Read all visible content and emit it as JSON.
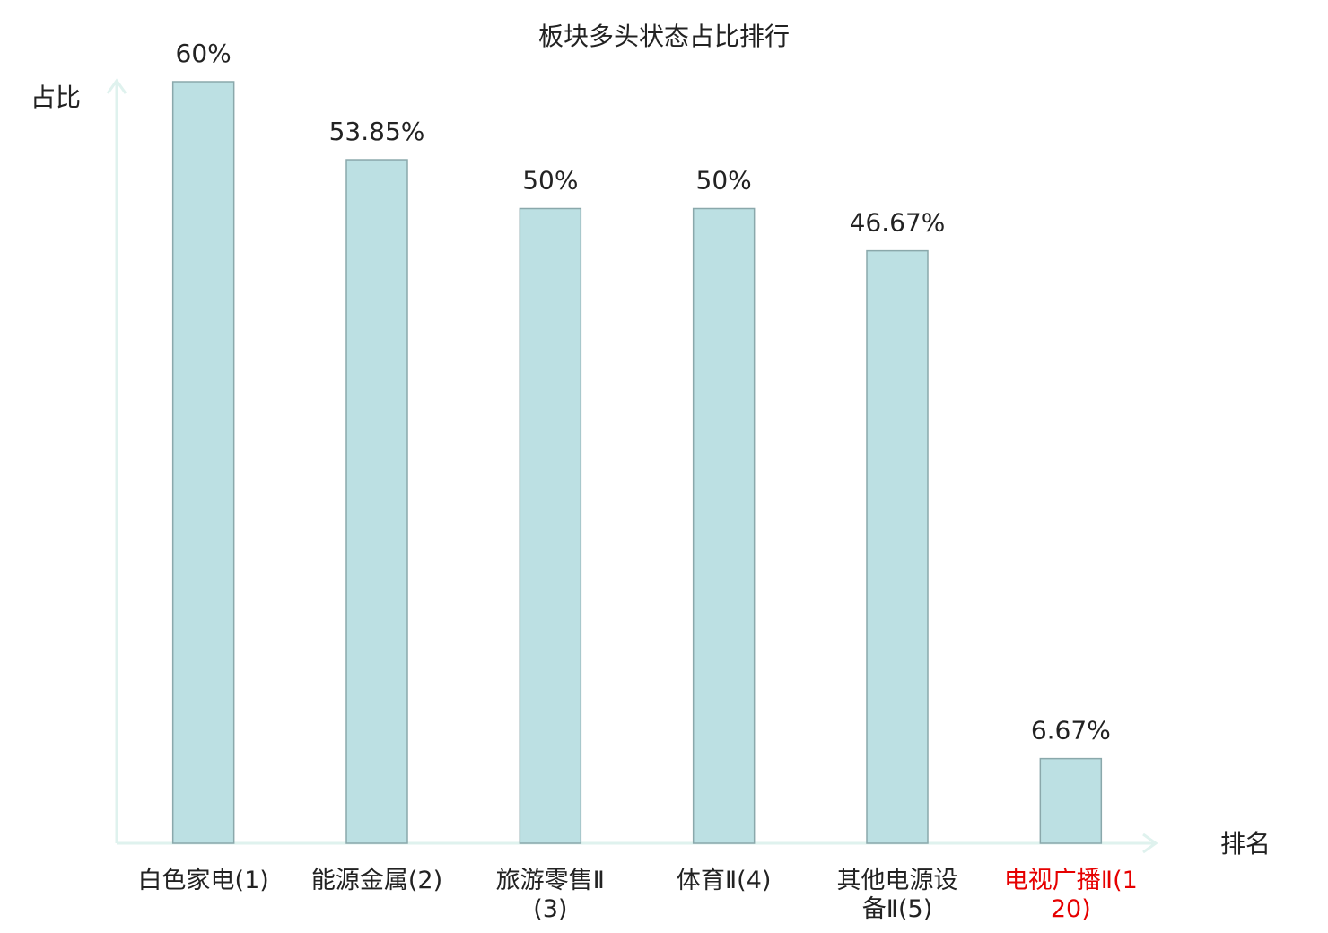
{
  "chart_data": {
    "type": "bar",
    "title": "板块多头状态占比排行",
    "y_label": "占比",
    "x_label": "排名",
    "categories": [
      "白色家电(1)",
      "能源金属(2)",
      "旅游零售Ⅱ(3)",
      "体育Ⅱ(4)",
      "其他电源设备Ⅱ(5)",
      "电视广播Ⅱ(120)"
    ],
    "values": [
      60,
      53.85,
      50,
      50,
      46.67,
      6.67
    ],
    "value_labels": [
      "60%",
      "53.85%",
      "50%",
      "50%",
      "46.67%",
      "6.67%"
    ],
    "color": "#bce0e3",
    "edge_color": "#8aa8ab",
    "label_colors": [
      "#222222",
      "#222222",
      "#222222",
      "#222222",
      "#222222",
      "#e60000"
    ],
    "ylim": [
      0,
      60
    ]
  }
}
